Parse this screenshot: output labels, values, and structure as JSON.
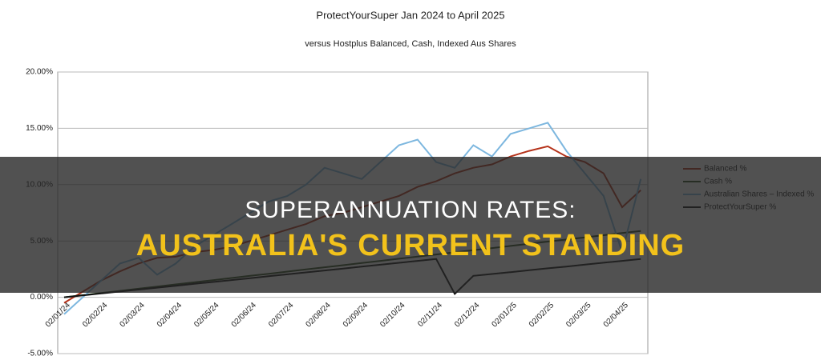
{
  "chart_data": {
    "type": "line",
    "title": "ProtectYourSuper Jan 2024 to April 2025",
    "subtitle": "versus Hostplus Balanced, Cash, Indexed Aus Shares",
    "categories": [
      "02/01/24",
      null,
      "02/02/24",
      null,
      "02/03/24",
      null,
      "02/04/24",
      null,
      "02/05/24",
      null,
      "02/06/24",
      null,
      "02/07/24",
      null,
      "02/08/24",
      null,
      "02/09/24",
      null,
      "02/10/24",
      null,
      "02/11/24",
      null,
      "02/12/24",
      null,
      "02/01/25",
      null,
      "02/02/25",
      null,
      "02/03/25",
      null,
      "02/04/25",
      null
    ],
    "series": [
      {
        "name": "Balanced %",
        "color": "#b5321a",
        "values": [
          -0.5,
          0.5,
          1.5,
          2.3,
          3,
          3.5,
          3.6,
          4,
          4.2,
          4.5,
          5,
          5.5,
          6,
          6.5,
          7.2,
          7.5,
          8,
          8.5,
          9,
          9.8,
          10.3,
          11,
          11.5,
          11.8,
          12.5,
          13,
          13.4,
          12.5,
          12,
          11,
          8,
          9.5
        ]
      },
      {
        "name": "Cash %",
        "color": "#2f4a1f",
        "values": [
          0,
          0.19,
          0.38,
          0.57,
          0.76,
          0.95,
          1.14,
          1.33,
          1.52,
          1.71,
          1.9,
          2.09,
          2.28,
          2.47,
          2.66,
          2.85,
          3.04,
          3.23,
          3.42,
          3.61,
          3.8,
          3.99,
          4.18,
          4.37,
          4.56,
          4.75,
          4.94,
          5.13,
          5.32,
          5.51,
          5.7,
          5.89
        ]
      },
      {
        "name": "Australian Shares – Indexed  %",
        "color": "#7db7df",
        "values": [
          -1.5,
          0,
          1.5,
          3,
          3.5,
          2,
          3,
          4.5,
          5.5,
          6.5,
          7.5,
          8.5,
          9,
          10,
          11.5,
          11,
          10.5,
          12,
          13.5,
          14,
          12,
          11.5,
          13.5,
          12.5,
          14.5,
          15,
          15.5,
          13,
          11,
          9,
          4,
          10.5
        ]
      },
      {
        "name": "ProtectYourSuper %",
        "color": "#111111",
        "values": [
          0,
          0.17,
          0.34,
          0.51,
          0.68,
          0.85,
          1.02,
          1.19,
          1.36,
          1.53,
          1.7,
          1.87,
          2.04,
          2.21,
          2.38,
          2.55,
          2.72,
          2.89,
          3.06,
          3.23,
          3.4,
          0.3,
          1.9,
          2.07,
          2.23,
          2.4,
          2.57,
          2.73,
          2.9,
          3.07,
          3.23,
          3.4
        ]
      }
    ],
    "ylim": [
      -5,
      20
    ],
    "yticks": [
      {
        "value": -5,
        "label": "-5.00%"
      },
      {
        "value": 0,
        "label": "0.00%"
      },
      {
        "value": 5,
        "label": "5.00%"
      },
      {
        "value": 10,
        "label": "10.00%"
      },
      {
        "value": 15,
        "label": "15.00%"
      },
      {
        "value": 20,
        "label": "20.00%"
      }
    ],
    "grid": true,
    "legend": "right"
  },
  "banner": {
    "title": "SUPERANNUATION RATES:",
    "subtitle": "AUSTRALIA'S CURRENT STANDING"
  }
}
